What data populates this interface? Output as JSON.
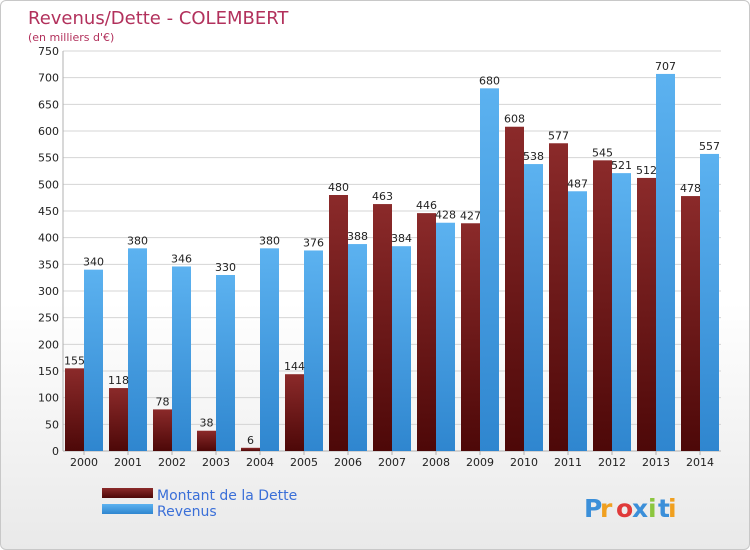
{
  "chart_data": {
    "type": "bar",
    "title": "Revenus/Dette - COLEMBERT",
    "subtitle": "(en milliers d'€)",
    "categories": [
      "2000",
      "2001",
      "2002",
      "2003",
      "2004",
      "2005",
      "2006",
      "2007",
      "2008",
      "2009",
      "2010",
      "2011",
      "2012",
      "2013",
      "2014"
    ],
    "series": [
      {
        "name": "Montant de la Dette",
        "color": "#7a1e1e",
        "values": [
          155,
          118,
          78,
          38,
          6,
          144,
          480,
          463,
          446,
          427,
          608,
          577,
          545,
          512,
          478
        ]
      },
      {
        "name": "Revenus",
        "color": "#4aa3e6",
        "values": [
          340,
          380,
          346,
          330,
          380,
          376,
          388,
          384,
          428,
          680,
          538,
          487,
          521,
          707,
          557
        ]
      }
    ],
    "ylim": [
      0,
      750
    ],
    "ytick_step": 50,
    "grid": true,
    "legend_position": "bottom-left"
  },
  "branding": {
    "logo_text": "Proxiti"
  }
}
